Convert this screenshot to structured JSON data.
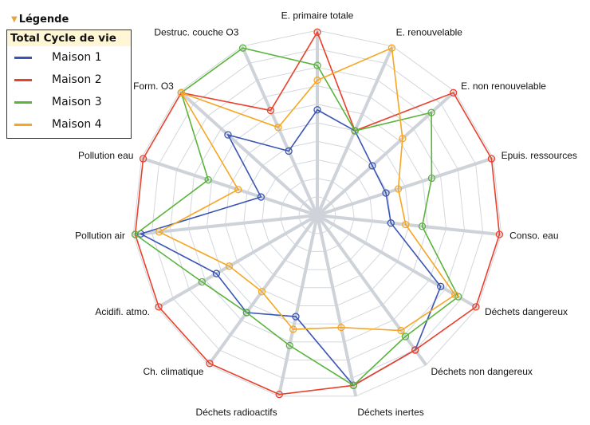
{
  "legend": {
    "header": "Légende",
    "toggle_icon": "collapse-triangle-icon",
    "title": "Total Cycle de vie",
    "items": [
      {
        "label": "Maison 1",
        "color": "#3a55b4"
      },
      {
        "label": "Maison 2",
        "color": "#e8412c"
      },
      {
        "label": "Maison 3",
        "color": "#5ab43c"
      },
      {
        "label": "Maison 4",
        "color": "#f6a623"
      }
    ]
  },
  "chart_data": {
    "type": "radar",
    "rmax": 10,
    "rings": 10,
    "grid": true,
    "legend_position": "top-left",
    "categories": [
      "E. primaire totale",
      "E. renouvelable",
      "E. non renouvelable",
      "Epuis. ressources",
      "Conso. eau",
      "Déchets dangereux",
      "Déchets non dangereux",
      "Déchets inertes",
      "Déchets radioactifs",
      "Ch. climatique",
      "Acidifi. atmo.",
      "Pollution air",
      "Pollution eau",
      "Form. O3",
      "Destruc. couche O3"
    ],
    "series": [
      {
        "name": "Maison 1",
        "color": "#3a55b4",
        "values": [
          5.7,
          5.0,
          4.0,
          3.9,
          4.0,
          7.7,
          9.0,
          9.4,
          5.6,
          6.5,
          6.3,
          9.6,
          3.2,
          6.5,
          3.8
        ]
      },
      {
        "name": "Maison 2",
        "color": "#e8412c",
        "values": [
          9.9,
          5.0,
          9.9,
          9.9,
          9.9,
          9.9,
          9.0,
          9.4,
          9.9,
          9.9,
          9.9,
          9.9,
          9.9,
          9.9,
          6.2
        ]
      },
      {
        "name": "Maison 3",
        "color": "#5ab43c",
        "values": [
          8.1,
          5.0,
          8.3,
          6.5,
          5.7,
          8.8,
          8.1,
          9.4,
          7.2,
          6.5,
          7.2,
          9.9,
          6.2,
          9.9,
          9.9
        ]
      },
      {
        "name": "Maison 4",
        "color": "#f6a623",
        "values": [
          7.3,
          9.9,
          6.2,
          4.6,
          4.8,
          8.6,
          7.7,
          6.2,
          6.3,
          5.1,
          5.5,
          8.6,
          4.5,
          9.9,
          5.2
        ]
      }
    ]
  }
}
